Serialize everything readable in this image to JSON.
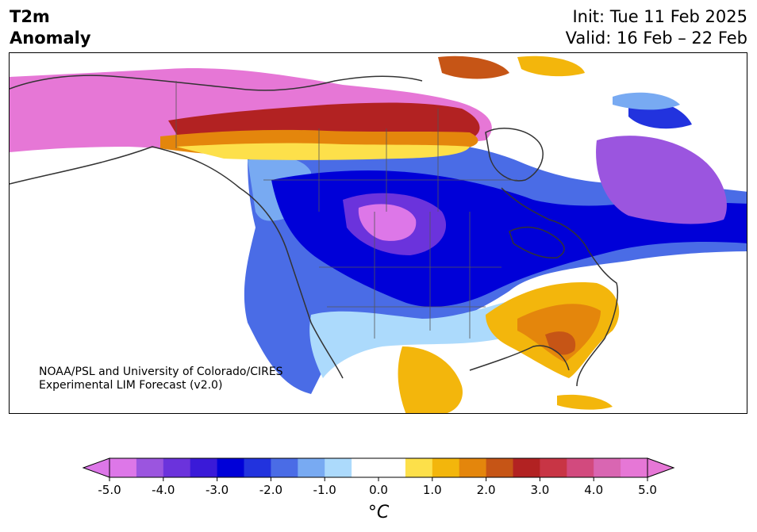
{
  "header": {
    "title_line1": "T2m",
    "title_line2": "Anomaly",
    "init": "Init: Tue 11 Feb 2025",
    "valid": "Valid: 16 Feb – 22 Feb"
  },
  "map": {
    "credit_line1": "NOAA/PSL and University of Colorado/CIRES",
    "credit_line2": "Experimental LIM Forecast (v2.0)"
  },
  "colorbar": {
    "unit": "°C",
    "tick_labels": [
      "-5.0",
      "-4.0",
      "-3.0",
      "-2.0",
      "-1.0",
      "0.0",
      "1.0",
      "2.0",
      "3.0",
      "4.0",
      "5.0"
    ],
    "colors": [
      "#dd77e8",
      "#9b55df",
      "#6b33dc",
      "#3a1ad8",
      "#0000d8",
      "#2233de",
      "#4a6ce6",
      "#78aaf2",
      "#acdafc",
      "#ffffff",
      "#ffffff",
      "#fde04a",
      "#f3b60c",
      "#e4860c",
      "#c65516",
      "#b22222",
      "#c83545",
      "#d24a7e",
      "#d966b2",
      "#e677d6"
    ],
    "extend_low_color": "#dd77e8",
    "extend_high_color": "#e677d6"
  }
}
